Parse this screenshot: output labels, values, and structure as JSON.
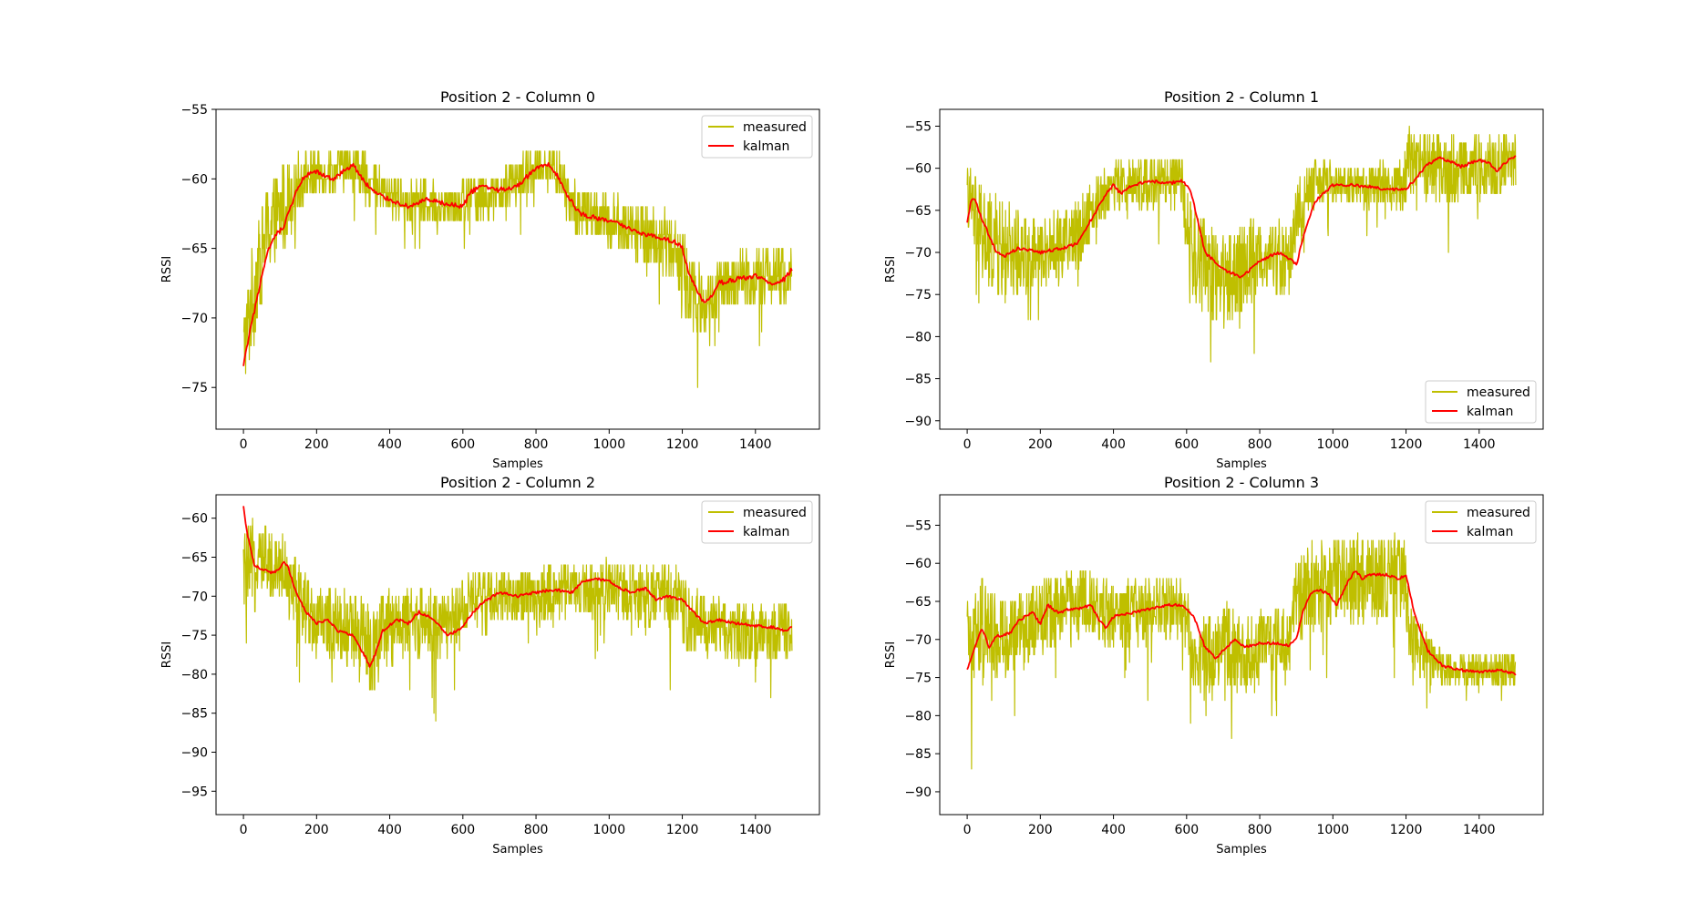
{
  "figure": {
    "background": "#ffffff",
    "colors": {
      "measured": "#bfbf00",
      "kalman": "#ff0000"
    }
  },
  "chart_data": [
    {
      "type": "line",
      "title": "Position 2 - Column 0",
      "xlabel": "Samples",
      "ylabel": "RSSI",
      "xlim": [
        -75,
        1575
      ],
      "ylim": [
        -78,
        -55
      ],
      "xticks": [
        0,
        200,
        400,
        600,
        800,
        1000,
        1200,
        1400
      ],
      "yticks": [
        -75,
        -70,
        -65,
        -60,
        -55
      ],
      "legend": {
        "position": "top-right",
        "entries": [
          "measured",
          "kalman"
        ]
      },
      "series": [
        {
          "name": "measured",
          "color": "#bfbf00",
          "kind": "noisy",
          "x": [
            0,
            30,
            60,
            110,
            160,
            220,
            300,
            380,
            460,
            540,
            600,
            700,
            800,
            850,
            900,
            1000,
            1100,
            1180,
            1220,
            1260,
            1300,
            1400,
            1500
          ],
          "center": [
            -72,
            -68,
            -64,
            -62,
            -60,
            -59.5,
            -59,
            -61,
            -61.5,
            -62,
            -61.5,
            -61,
            -59,
            -59,
            -62,
            -63,
            -64,
            -65,
            -68,
            -69,
            -68,
            -67,
            -67
          ],
          "spread": [
            2.5,
            4,
            3.5,
            3,
            1.8,
            1.5,
            1.5,
            1.5,
            1.5,
            1.5,
            1.8,
            1.5,
            1.5,
            1.5,
            1.8,
            1.8,
            2,
            2.5,
            3,
            2.5,
            2,
            2,
            2
          ]
        },
        {
          "name": "kalman",
          "color": "#ff0000",
          "kind": "smooth",
          "x": [
            0,
            10,
            30,
            50,
            70,
            90,
            110,
            130,
            150,
            170,
            200,
            220,
            250,
            280,
            300,
            330,
            360,
            400,
            450,
            500,
            550,
            600,
            620,
            650,
            700,
            750,
            800,
            840,
            860,
            880,
            920,
            960,
            1000,
            1050,
            1100,
            1150,
            1180,
            1200,
            1220,
            1240,
            1260,
            1280,
            1300,
            1350,
            1400,
            1450,
            1480,
            1500
          ],
          "y": [
            -73.5,
            -72,
            -69.5,
            -67,
            -65,
            -64,
            -63.5,
            -62,
            -60.5,
            -59.8,
            -59.5,
            -59.8,
            -60,
            -59.3,
            -59,
            -60.2,
            -61,
            -61.5,
            -62,
            -61.5,
            -61.8,
            -62,
            -61,
            -60.5,
            -60.8,
            -60.5,
            -59.2,
            -59,
            -59.8,
            -61,
            -62.5,
            -62.8,
            -63,
            -63.5,
            -64,
            -64.3,
            -64.5,
            -65,
            -67,
            -68,
            -69,
            -68.5,
            -67.5,
            -67.2,
            -67,
            -67.5,
            -67.2,
            -66.5
          ]
        }
      ]
    },
    {
      "type": "line",
      "title": "Position 2 - Column 1",
      "xlabel": "Samples",
      "ylabel": "RSSI",
      "xlim": [
        -75,
        1575
      ],
      "ylim": [
        -91,
        -53
      ],
      "xticks": [
        0,
        200,
        400,
        600,
        800,
        1000,
        1200,
        1400
      ],
      "yticks": [
        -90,
        -85,
        -80,
        -75,
        -70,
        -65,
        -60,
        -55
      ],
      "legend": {
        "position": "bottom-right",
        "entries": [
          "measured",
          "kalman"
        ]
      },
      "series": [
        {
          "name": "measured",
          "color": "#bfbf00",
          "kind": "noisy",
          "x": [
            0,
            40,
            100,
            200,
            300,
            350,
            400,
            500,
            590,
            610,
            650,
            700,
            750,
            800,
            880,
            910,
            950,
            1000,
            1100,
            1190,
            1210,
            1300,
            1400,
            1500
          ],
          "center": [
            -63,
            -68,
            -70,
            -70,
            -68,
            -64,
            -62,
            -61.5,
            -62,
            -70,
            -72,
            -73,
            -72,
            -70,
            -71,
            -64,
            -62,
            -62,
            -62,
            -62,
            -59,
            -60,
            -60,
            -59
          ],
          "spread": [
            4,
            6,
            6,
            4,
            4,
            3.5,
            3,
            3,
            3.5,
            6,
            6,
            6,
            5,
            4.5,
            4.5,
            3.5,
            3,
            2.5,
            2.5,
            3,
            4,
            4,
            4,
            3.5
          ]
        },
        {
          "name": "kalman",
          "color": "#ff0000",
          "kind": "smooth",
          "x": [
            0,
            10,
            20,
            40,
            60,
            80,
            100,
            140,
            200,
            260,
            300,
            340,
            380,
            400,
            420,
            450,
            500,
            550,
            590,
            610,
            630,
            650,
            700,
            750,
            800,
            850,
            890,
            900,
            920,
            950,
            1000,
            1050,
            1100,
            1150,
            1200,
            1230,
            1260,
            1290,
            1320,
            1350,
            1400,
            1430,
            1450,
            1480,
            1500
          ],
          "y": [
            -66.5,
            -64,
            -63.5,
            -66,
            -68,
            -70,
            -70.5,
            -69.5,
            -70,
            -69.5,
            -69,
            -66,
            -63,
            -62,
            -63,
            -62,
            -61.5,
            -61.8,
            -61.5,
            -62.5,
            -66,
            -70,
            -72,
            -73,
            -71,
            -70,
            -71,
            -71.5,
            -68,
            -64,
            -62,
            -62,
            -62.2,
            -62.5,
            -62.5,
            -61,
            -59.5,
            -58.8,
            -59.2,
            -59.8,
            -59,
            -59.5,
            -60.3,
            -59,
            -58.5
          ]
        }
      ]
    },
    {
      "type": "line",
      "title": "Position 2 - Column 2",
      "xlabel": "Samples",
      "ylabel": "RSSI",
      "xlim": [
        -75,
        1575
      ],
      "ylim": [
        -98,
        -57
      ],
      "xticks": [
        0,
        200,
        400,
        600,
        800,
        1000,
        1200,
        1400
      ],
      "yticks": [
        -95,
        -90,
        -85,
        -80,
        -75,
        -70,
        -65,
        -60
      ],
      "legend": {
        "position": "top-right",
        "entries": [
          "measured",
          "kalman"
        ]
      },
      "series": [
        {
          "name": "measured",
          "color": "#bfbf00",
          "kind": "noisy",
          "x": [
            0,
            30,
            80,
            110,
            150,
            200,
            280,
            350,
            400,
            500,
            560,
            600,
            650,
            700,
            800,
            900,
            1000,
            1100,
            1190,
            1210,
            1300,
            1400,
            1500
          ],
          "center": [
            -67,
            -66,
            -66,
            -66,
            -70,
            -73,
            -74,
            -77,
            -74,
            -73,
            -74,
            -71,
            -70,
            -70,
            -70,
            -69,
            -69,
            -70,
            -70,
            -73,
            -74,
            -75,
            -74
          ],
          "spread": [
            5,
            6,
            4,
            4,
            4.5,
            4.5,
            5,
            6,
            5,
            4.5,
            4,
            3.5,
            3.5,
            3.5,
            3.5,
            3.5,
            4,
            4,
            4,
            4.5,
            4,
            3.5,
            3.5
          ]
        },
        {
          "name": "kalman",
          "color": "#ff0000",
          "kind": "smooth",
          "x": [
            0,
            10,
            20,
            30,
            50,
            80,
            100,
            110,
            120,
            140,
            170,
            200,
            230,
            260,
            300,
            330,
            345,
            360,
            380,
            420,
            450,
            480,
            520,
            560,
            600,
            620,
            650,
            700,
            750,
            800,
            850,
            900,
            930,
            960,
            1000,
            1030,
            1060,
            1100,
            1130,
            1160,
            1200,
            1230,
            1260,
            1300,
            1350,
            1400,
            1450,
            1480,
            1500
          ],
          "y": [
            -58.5,
            -62,
            -64,
            -66,
            -66.5,
            -67,
            -66.5,
            -65.5,
            -66,
            -69,
            -72,
            -73.5,
            -73,
            -74.5,
            -75,
            -77.5,
            -79,
            -77.5,
            -74.5,
            -73,
            -73.5,
            -72,
            -73,
            -75,
            -74,
            -72.5,
            -71,
            -69.5,
            -70,
            -69.5,
            -69.2,
            -69.5,
            -68,
            -67.8,
            -68,
            -69,
            -69.5,
            -69,
            -70.5,
            -70,
            -70.5,
            -72,
            -73.5,
            -73,
            -73.5,
            -73.8,
            -74,
            -74.5,
            -74
          ]
        }
      ]
    },
    {
      "type": "line",
      "title": "Position 2 - Column 3",
      "xlabel": "Samples",
      "ylabel": "RSSI",
      "xlim": [
        -75,
        1575
      ],
      "ylim": [
        -93,
        -51
      ],
      "xticks": [
        0,
        200,
        400,
        600,
        800,
        1000,
        1200,
        1400
      ],
      "yticks": [
        -90,
        -85,
        -80,
        -75,
        -70,
        -65,
        -60,
        -55
      ],
      "legend": {
        "position": "top-right",
        "entries": [
          "measured",
          "kalman"
        ]
      },
      "series": [
        {
          "name": "measured",
          "color": "#bfbf00",
          "kind": "noisy",
          "x": [
            0,
            40,
            100,
            200,
            300,
            400,
            500,
            590,
            620,
            650,
            700,
            760,
            800,
            880,
            905,
            950,
            1050,
            1150,
            1195,
            1210,
            1250,
            1300,
            1400,
            1500
          ],
          "center": [
            -70,
            -69,
            -70,
            -67,
            -65,
            -67,
            -66,
            -66,
            -71,
            -73,
            -70,
            -72,
            -71,
            -70,
            -64,
            -63,
            -62,
            -62,
            -62,
            -70,
            -72,
            -74,
            -74,
            -74
          ],
          "spread": [
            5,
            7,
            5,
            5,
            5,
            4.5,
            4.5,
            4,
            6,
            6,
            5,
            6,
            5,
            4.5,
            6,
            6,
            6,
            6,
            6,
            4,
            3.5,
            2.5,
            2,
            2.5
          ]
        },
        {
          "name": "kalman",
          "color": "#ff0000",
          "kind": "smooth",
          "x": [
            0,
            20,
            40,
            60,
            80,
            100,
            120,
            140,
            180,
            200,
            220,
            250,
            280,
            300,
            340,
            360,
            380,
            400,
            450,
            500,
            550,
            590,
            620,
            650,
            680,
            700,
            730,
            760,
            800,
            850,
            880,
            900,
            920,
            940,
            960,
            990,
            1010,
            1040,
            1060,
            1080,
            1100,
            1150,
            1180,
            1200,
            1220,
            1240,
            1260,
            1300,
            1350,
            1400,
            1450,
            1500
          ],
          "y": [
            -74,
            -71,
            -68.5,
            -71,
            -69.5,
            -69.5,
            -69,
            -67.5,
            -66.5,
            -68,
            -65.5,
            -66.5,
            -66,
            -66,
            -65.5,
            -67.5,
            -68.5,
            -67,
            -66.5,
            -66,
            -65.5,
            -65.5,
            -67,
            -71,
            -72.5,
            -71.5,
            -70,
            -71,
            -70.5,
            -70.5,
            -70.8,
            -70,
            -66,
            -64,
            -63.5,
            -64,
            -65.5,
            -62.5,
            -61,
            -62,
            -61.5,
            -61.5,
            -62,
            -61.5,
            -66,
            -69,
            -71.5,
            -73.5,
            -74,
            -74.3,
            -74,
            -74.5
          ]
        }
      ]
    }
  ]
}
